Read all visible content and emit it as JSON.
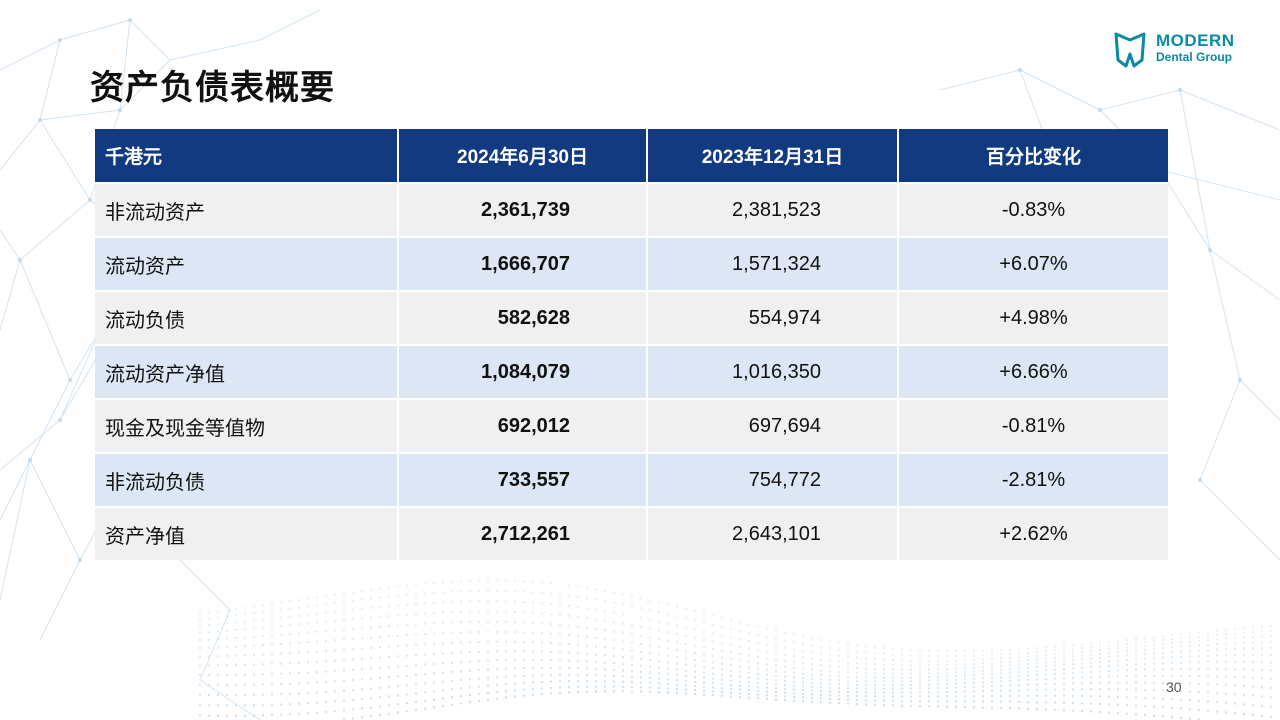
{
  "slide": {
    "title": "资产负债表概要",
    "page_number": "30"
  },
  "logo": {
    "line1": "MODERN",
    "line2": "Dental Group",
    "color": "#0b8aa6"
  },
  "table": {
    "headers": [
      "千港元",
      "2024年6月30日",
      "2023年12月31日",
      "百分比变化"
    ],
    "rows": [
      [
        "非流动资产",
        "2,361,739",
        "2,381,523",
        "-0.83%"
      ],
      [
        "流动资产",
        "1,666,707",
        "1,571,324",
        "+6.07%"
      ],
      [
        "流动负债",
        "582,628",
        "554,974",
        "+4.98%"
      ],
      [
        "流动资产净值",
        "1,084,079",
        "1,016,350",
        "+6.66%"
      ],
      [
        "现金及现金等值物",
        "692,012",
        "697,694",
        "-0.81%"
      ],
      [
        "非流动负债",
        "733,557",
        "754,772",
        "-2.81%"
      ],
      [
        "资产净值",
        "2,712,261",
        "2,643,101",
        "+2.62%"
      ]
    ],
    "header_color": "#123a80",
    "row_colors": [
      "#f0f0f0",
      "#dce6f4"
    ]
  }
}
